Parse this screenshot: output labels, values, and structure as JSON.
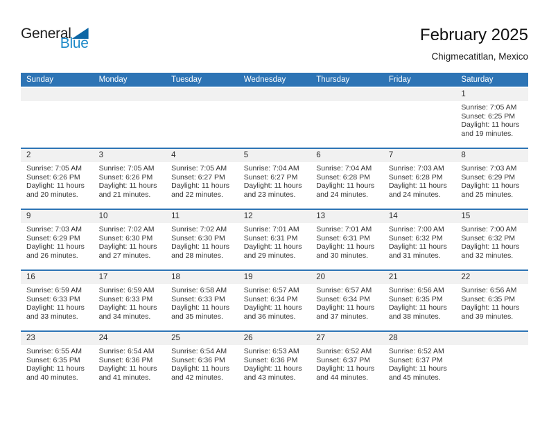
{
  "logo": {
    "general": "General",
    "blue": "Blue"
  },
  "header": {
    "title": "February 2025",
    "subtitle": "Chigmecatitlan, Mexico"
  },
  "colors": {
    "header_bg": "#2D74B5",
    "week_line": "#2D74B5",
    "strip_bg": "#F1F1F1",
    "logo_blue": "#1C89C8",
    "tri_blue": "#0E67A5",
    "text_dark": "#1D1D1D",
    "cell_text": "#333333"
  },
  "calendar": {
    "weekdays": [
      "Sunday",
      "Monday",
      "Tuesday",
      "Wednesday",
      "Thursday",
      "Friday",
      "Saturday"
    ],
    "weeks": [
      [
        null,
        null,
        null,
        null,
        null,
        null,
        {
          "day": "1",
          "lines": [
            "Sunrise: 7:05 AM",
            "Sunset: 6:25 PM",
            "Daylight: 11 hours",
            "and 19 minutes."
          ]
        }
      ],
      [
        {
          "day": "2",
          "lines": [
            "Sunrise: 7:05 AM",
            "Sunset: 6:26 PM",
            "Daylight: 11 hours",
            "and 20 minutes."
          ]
        },
        {
          "day": "3",
          "lines": [
            "Sunrise: 7:05 AM",
            "Sunset: 6:26 PM",
            "Daylight: 11 hours",
            "and 21 minutes."
          ]
        },
        {
          "day": "4",
          "lines": [
            "Sunrise: 7:05 AM",
            "Sunset: 6:27 PM",
            "Daylight: 11 hours",
            "and 22 minutes."
          ]
        },
        {
          "day": "5",
          "lines": [
            "Sunrise: 7:04 AM",
            "Sunset: 6:27 PM",
            "Daylight: 11 hours",
            "and 23 minutes."
          ]
        },
        {
          "day": "6",
          "lines": [
            "Sunrise: 7:04 AM",
            "Sunset: 6:28 PM",
            "Daylight: 11 hours",
            "and 24 minutes."
          ]
        },
        {
          "day": "7",
          "lines": [
            "Sunrise: 7:03 AM",
            "Sunset: 6:28 PM",
            "Daylight: 11 hours",
            "and 24 minutes."
          ]
        },
        {
          "day": "8",
          "lines": [
            "Sunrise: 7:03 AM",
            "Sunset: 6:29 PM",
            "Daylight: 11 hours",
            "and 25 minutes."
          ]
        }
      ],
      [
        {
          "day": "9",
          "lines": [
            "Sunrise: 7:03 AM",
            "Sunset: 6:29 PM",
            "Daylight: 11 hours",
            "and 26 minutes."
          ]
        },
        {
          "day": "10",
          "lines": [
            "Sunrise: 7:02 AM",
            "Sunset: 6:30 PM",
            "Daylight: 11 hours",
            "and 27 minutes."
          ]
        },
        {
          "day": "11",
          "lines": [
            "Sunrise: 7:02 AM",
            "Sunset: 6:30 PM",
            "Daylight: 11 hours",
            "and 28 minutes."
          ]
        },
        {
          "day": "12",
          "lines": [
            "Sunrise: 7:01 AM",
            "Sunset: 6:31 PM",
            "Daylight: 11 hours",
            "and 29 minutes."
          ]
        },
        {
          "day": "13",
          "lines": [
            "Sunrise: 7:01 AM",
            "Sunset: 6:31 PM",
            "Daylight: 11 hours",
            "and 30 minutes."
          ]
        },
        {
          "day": "14",
          "lines": [
            "Sunrise: 7:00 AM",
            "Sunset: 6:32 PM",
            "Daylight: 11 hours",
            "and 31 minutes."
          ]
        },
        {
          "day": "15",
          "lines": [
            "Sunrise: 7:00 AM",
            "Sunset: 6:32 PM",
            "Daylight: 11 hours",
            "and 32 minutes."
          ]
        }
      ],
      [
        {
          "day": "16",
          "lines": [
            "Sunrise: 6:59 AM",
            "Sunset: 6:33 PM",
            "Daylight: 11 hours",
            "and 33 minutes."
          ]
        },
        {
          "day": "17",
          "lines": [
            "Sunrise: 6:59 AM",
            "Sunset: 6:33 PM",
            "Daylight: 11 hours",
            "and 34 minutes."
          ]
        },
        {
          "day": "18",
          "lines": [
            "Sunrise: 6:58 AM",
            "Sunset: 6:33 PM",
            "Daylight: 11 hours",
            "and 35 minutes."
          ]
        },
        {
          "day": "19",
          "lines": [
            "Sunrise: 6:57 AM",
            "Sunset: 6:34 PM",
            "Daylight: 11 hours",
            "and 36 minutes."
          ]
        },
        {
          "day": "20",
          "lines": [
            "Sunrise: 6:57 AM",
            "Sunset: 6:34 PM",
            "Daylight: 11 hours",
            "and 37 minutes."
          ]
        },
        {
          "day": "21",
          "lines": [
            "Sunrise: 6:56 AM",
            "Sunset: 6:35 PM",
            "Daylight: 11 hours",
            "and 38 minutes."
          ]
        },
        {
          "day": "22",
          "lines": [
            "Sunrise: 6:56 AM",
            "Sunset: 6:35 PM",
            "Daylight: 11 hours",
            "and 39 minutes."
          ]
        }
      ],
      [
        {
          "day": "23",
          "lines": [
            "Sunrise: 6:55 AM",
            "Sunset: 6:35 PM",
            "Daylight: 11 hours",
            "and 40 minutes."
          ]
        },
        {
          "day": "24",
          "lines": [
            "Sunrise: 6:54 AM",
            "Sunset: 6:36 PM",
            "Daylight: 11 hours",
            "and 41 minutes."
          ]
        },
        {
          "day": "25",
          "lines": [
            "Sunrise: 6:54 AM",
            "Sunset: 6:36 PM",
            "Daylight: 11 hours",
            "and 42 minutes."
          ]
        },
        {
          "day": "26",
          "lines": [
            "Sunrise: 6:53 AM",
            "Sunset: 6:36 PM",
            "Daylight: 11 hours",
            "and 43 minutes."
          ]
        },
        {
          "day": "27",
          "lines": [
            "Sunrise: 6:52 AM",
            "Sunset: 6:37 PM",
            "Daylight: 11 hours",
            "and 44 minutes."
          ]
        },
        {
          "day": "28",
          "lines": [
            "Sunrise: 6:52 AM",
            "Sunset: 6:37 PM",
            "Daylight: 11 hours",
            "and 45 minutes."
          ]
        },
        null
      ]
    ]
  }
}
